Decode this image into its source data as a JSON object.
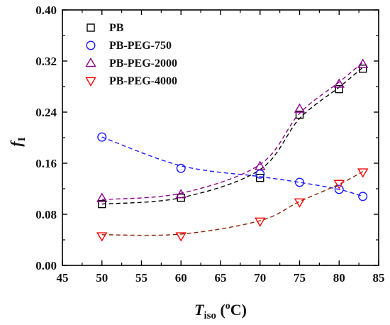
{
  "chart_data": {
    "type": "scatter",
    "xlabel": {
      "main": "T",
      "sub": "iso",
      "paren_open": " (",
      "sup": "o",
      "unit": "C)"
    },
    "ylabel": {
      "main": "f",
      "sub": "I"
    },
    "xlim": [
      45,
      85
    ],
    "ylim": [
      0.0,
      0.4
    ],
    "xticks": [
      "45",
      "50",
      "55",
      "60",
      "65",
      "70",
      "75",
      "80",
      "85"
    ],
    "yticks": [
      "0.00",
      "0.08",
      "0.16",
      "0.24",
      "0.32",
      "0.40"
    ],
    "grid": false,
    "legend_position": "top-left",
    "series": [
      {
        "name": "PB",
        "marker": "square",
        "color": "#000000",
        "fit_color": "#000000",
        "x": [
          50,
          60,
          70,
          75,
          80,
          83
        ],
        "y": [
          0.096,
          0.106,
          0.137,
          0.236,
          0.276,
          0.308
        ],
        "fit_y": [
          0.096,
          0.106,
          0.15,
          0.23,
          0.279,
          0.31
        ]
      },
      {
        "name": "PB-PEG-750",
        "marker": "circle",
        "color": "#1a1aff",
        "fit_color": "#1a1aff",
        "x": [
          50,
          60,
          70,
          75,
          80,
          83
        ],
        "y": [
          0.201,
          0.152,
          0.143,
          0.13,
          0.119,
          0.108
        ],
        "fit_y": [
          0.201,
          0.156,
          0.139,
          0.13,
          0.119,
          0.108
        ]
      },
      {
        "name": "PB-PEG-2000",
        "marker": "triangle-up",
        "color": "#8b008b",
        "fit_color": "#8b008b",
        "x": [
          50,
          60,
          70,
          75,
          80,
          83
        ],
        "y": [
          0.105,
          0.111,
          0.155,
          0.245,
          0.284,
          0.315
        ],
        "fit_y": [
          0.103,
          0.113,
          0.158,
          0.238,
          0.287,
          0.318
        ]
      },
      {
        "name": "PB-PEG-4000",
        "marker": "triangle-down",
        "color": "#ff0000",
        "fit_color": "#8b2500",
        "x": [
          50,
          60,
          70,
          75,
          80,
          83
        ],
        "y": [
          0.046,
          0.046,
          0.069,
          0.099,
          0.128,
          0.146
        ],
        "fit_y": [
          0.048,
          0.049,
          0.07,
          0.1,
          0.127,
          0.147
        ]
      }
    ]
  }
}
